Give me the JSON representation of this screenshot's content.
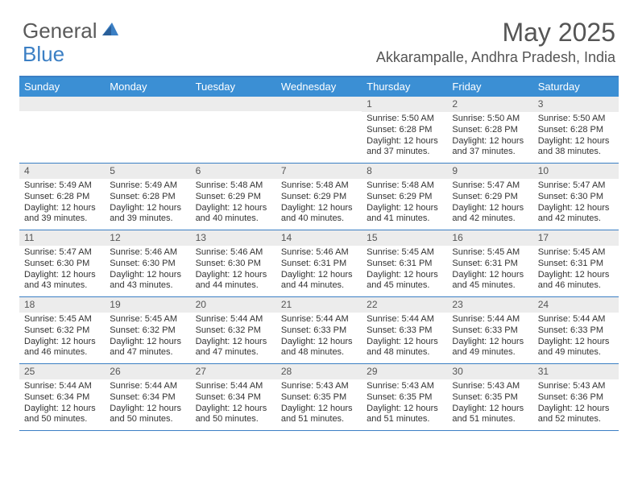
{
  "logo": {
    "text1": "General",
    "text2": "Blue"
  },
  "title": "May 2025",
  "location": "Akkarampalle, Andhra Pradesh, India",
  "colors": {
    "header_bg": "#3b8fd4",
    "accent_line": "#3b7fc4",
    "daynum_bg": "#ececec",
    "text": "#333333",
    "muted": "#555555"
  },
  "weekdays": [
    "Sunday",
    "Monday",
    "Tuesday",
    "Wednesday",
    "Thursday",
    "Friday",
    "Saturday"
  ],
  "weeks": [
    [
      null,
      null,
      null,
      null,
      {
        "n": "1",
        "sr": "Sunrise: 5:50 AM",
        "ss": "Sunset: 6:28 PM",
        "d1": "Daylight: 12 hours",
        "d2": "and 37 minutes."
      },
      {
        "n": "2",
        "sr": "Sunrise: 5:50 AM",
        "ss": "Sunset: 6:28 PM",
        "d1": "Daylight: 12 hours",
        "d2": "and 37 minutes."
      },
      {
        "n": "3",
        "sr": "Sunrise: 5:50 AM",
        "ss": "Sunset: 6:28 PM",
        "d1": "Daylight: 12 hours",
        "d2": "and 38 minutes."
      }
    ],
    [
      {
        "n": "4",
        "sr": "Sunrise: 5:49 AM",
        "ss": "Sunset: 6:28 PM",
        "d1": "Daylight: 12 hours",
        "d2": "and 39 minutes."
      },
      {
        "n": "5",
        "sr": "Sunrise: 5:49 AM",
        "ss": "Sunset: 6:28 PM",
        "d1": "Daylight: 12 hours",
        "d2": "and 39 minutes."
      },
      {
        "n": "6",
        "sr": "Sunrise: 5:48 AM",
        "ss": "Sunset: 6:29 PM",
        "d1": "Daylight: 12 hours",
        "d2": "and 40 minutes."
      },
      {
        "n": "7",
        "sr": "Sunrise: 5:48 AM",
        "ss": "Sunset: 6:29 PM",
        "d1": "Daylight: 12 hours",
        "d2": "and 40 minutes."
      },
      {
        "n": "8",
        "sr": "Sunrise: 5:48 AM",
        "ss": "Sunset: 6:29 PM",
        "d1": "Daylight: 12 hours",
        "d2": "and 41 minutes."
      },
      {
        "n": "9",
        "sr": "Sunrise: 5:47 AM",
        "ss": "Sunset: 6:29 PM",
        "d1": "Daylight: 12 hours",
        "d2": "and 42 minutes."
      },
      {
        "n": "10",
        "sr": "Sunrise: 5:47 AM",
        "ss": "Sunset: 6:30 PM",
        "d1": "Daylight: 12 hours",
        "d2": "and 42 minutes."
      }
    ],
    [
      {
        "n": "11",
        "sr": "Sunrise: 5:47 AM",
        "ss": "Sunset: 6:30 PM",
        "d1": "Daylight: 12 hours",
        "d2": "and 43 minutes."
      },
      {
        "n": "12",
        "sr": "Sunrise: 5:46 AM",
        "ss": "Sunset: 6:30 PM",
        "d1": "Daylight: 12 hours",
        "d2": "and 43 minutes."
      },
      {
        "n": "13",
        "sr": "Sunrise: 5:46 AM",
        "ss": "Sunset: 6:30 PM",
        "d1": "Daylight: 12 hours",
        "d2": "and 44 minutes."
      },
      {
        "n": "14",
        "sr": "Sunrise: 5:46 AM",
        "ss": "Sunset: 6:31 PM",
        "d1": "Daylight: 12 hours",
        "d2": "and 44 minutes."
      },
      {
        "n": "15",
        "sr": "Sunrise: 5:45 AM",
        "ss": "Sunset: 6:31 PM",
        "d1": "Daylight: 12 hours",
        "d2": "and 45 minutes."
      },
      {
        "n": "16",
        "sr": "Sunrise: 5:45 AM",
        "ss": "Sunset: 6:31 PM",
        "d1": "Daylight: 12 hours",
        "d2": "and 45 minutes."
      },
      {
        "n": "17",
        "sr": "Sunrise: 5:45 AM",
        "ss": "Sunset: 6:31 PM",
        "d1": "Daylight: 12 hours",
        "d2": "and 46 minutes."
      }
    ],
    [
      {
        "n": "18",
        "sr": "Sunrise: 5:45 AM",
        "ss": "Sunset: 6:32 PM",
        "d1": "Daylight: 12 hours",
        "d2": "and 46 minutes."
      },
      {
        "n": "19",
        "sr": "Sunrise: 5:45 AM",
        "ss": "Sunset: 6:32 PM",
        "d1": "Daylight: 12 hours",
        "d2": "and 47 minutes."
      },
      {
        "n": "20",
        "sr": "Sunrise: 5:44 AM",
        "ss": "Sunset: 6:32 PM",
        "d1": "Daylight: 12 hours",
        "d2": "and 47 minutes."
      },
      {
        "n": "21",
        "sr": "Sunrise: 5:44 AM",
        "ss": "Sunset: 6:33 PM",
        "d1": "Daylight: 12 hours",
        "d2": "and 48 minutes."
      },
      {
        "n": "22",
        "sr": "Sunrise: 5:44 AM",
        "ss": "Sunset: 6:33 PM",
        "d1": "Daylight: 12 hours",
        "d2": "and 48 minutes."
      },
      {
        "n": "23",
        "sr": "Sunrise: 5:44 AM",
        "ss": "Sunset: 6:33 PM",
        "d1": "Daylight: 12 hours",
        "d2": "and 49 minutes."
      },
      {
        "n": "24",
        "sr": "Sunrise: 5:44 AM",
        "ss": "Sunset: 6:33 PM",
        "d1": "Daylight: 12 hours",
        "d2": "and 49 minutes."
      }
    ],
    [
      {
        "n": "25",
        "sr": "Sunrise: 5:44 AM",
        "ss": "Sunset: 6:34 PM",
        "d1": "Daylight: 12 hours",
        "d2": "and 50 minutes."
      },
      {
        "n": "26",
        "sr": "Sunrise: 5:44 AM",
        "ss": "Sunset: 6:34 PM",
        "d1": "Daylight: 12 hours",
        "d2": "and 50 minutes."
      },
      {
        "n": "27",
        "sr": "Sunrise: 5:44 AM",
        "ss": "Sunset: 6:34 PM",
        "d1": "Daylight: 12 hours",
        "d2": "and 50 minutes."
      },
      {
        "n": "28",
        "sr": "Sunrise: 5:43 AM",
        "ss": "Sunset: 6:35 PM",
        "d1": "Daylight: 12 hours",
        "d2": "and 51 minutes."
      },
      {
        "n": "29",
        "sr": "Sunrise: 5:43 AM",
        "ss": "Sunset: 6:35 PM",
        "d1": "Daylight: 12 hours",
        "d2": "and 51 minutes."
      },
      {
        "n": "30",
        "sr": "Sunrise: 5:43 AM",
        "ss": "Sunset: 6:35 PM",
        "d1": "Daylight: 12 hours",
        "d2": "and 51 minutes."
      },
      {
        "n": "31",
        "sr": "Sunrise: 5:43 AM",
        "ss": "Sunset: 6:36 PM",
        "d1": "Daylight: 12 hours",
        "d2": "and 52 minutes."
      }
    ]
  ]
}
